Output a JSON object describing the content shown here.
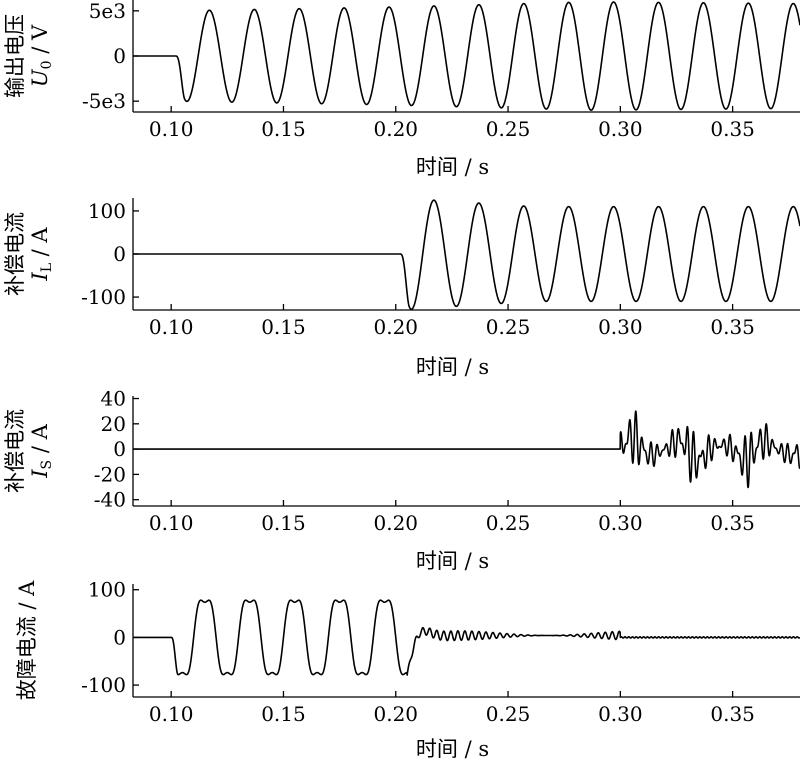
{
  "chart_data": [
    {
      "type": "line",
      "ylabel_cn": "输出电压",
      "ylabel_sym": "U",
      "ylabel_sub": "0",
      "ylabel_unit": " / V",
      "xlabel": "时间 / s",
      "xlim": [
        0.083,
        0.38
      ],
      "ylim": [
        -6200,
        6200
      ],
      "xticks": [
        0.1,
        0.15,
        0.2,
        0.25,
        0.3,
        0.35
      ],
      "xtick_labels": [
        "0.10",
        "0.15",
        "0.20",
        "0.25",
        "0.30",
        "0.35"
      ],
      "yticks": [
        5000,
        0,
        -5000
      ],
      "ytick_labels": [
        "5e3",
        "0",
        "-5e3"
      ],
      "series": [
        {
          "waveform": "sine",
          "start": 0.102,
          "frequency_hz": 50,
          "amplitude": [
            5000,
            5400,
            6000,
            5800
          ]
        }
      ]
    },
    {
      "type": "line",
      "ylabel_cn": "补偿电流",
      "ylabel_sym": "I",
      "ylabel_sub": "L",
      "ylabel_unit": " / A",
      "xlabel": "时间 / s",
      "xlim": [
        0.083,
        0.38
      ],
      "ylim": [
        -130,
        130
      ],
      "xticks": [
        0.1,
        0.15,
        0.2,
        0.25,
        0.3,
        0.35
      ],
      "xtick_labels": [
        "0.10",
        "0.15",
        "0.20",
        "0.25",
        "0.30",
        "0.35"
      ],
      "yticks": [
        100,
        0,
        -100
      ],
      "ytick_labels": [
        "100",
        "0",
        "-100"
      ],
      "series": [
        {
          "waveform": "sine",
          "start": 0.202,
          "frequency_hz": 50,
          "amplitude": [
            130,
            110,
            110,
            110
          ]
        }
      ]
    },
    {
      "type": "line",
      "ylabel_cn": "补偿电流",
      "ylabel_sym": "I",
      "ylabel_sub": "S",
      "ylabel_unit": " / A",
      "xlabel": "时间 / s",
      "xlim": [
        0.083,
        0.38
      ],
      "ylim": [
        -45,
        42
      ],
      "xticks": [
        0.1,
        0.15,
        0.2,
        0.25,
        0.3,
        0.35
      ],
      "xtick_labels": [
        "0.10",
        "0.15",
        "0.20",
        "0.25",
        "0.30",
        "0.35"
      ],
      "yticks": [
        40,
        20,
        0,
        -20,
        -40
      ],
      "ytick_labels": [
        "40",
        "20",
        "0",
        "-20",
        "-40"
      ],
      "series": [
        {
          "waveform": "oscillation",
          "start": 0.3,
          "amplitude_range": [
            -27,
            27
          ]
        }
      ]
    },
    {
      "type": "line",
      "ylabel_cn": "故障电流",
      "ylabel_sym": "",
      "ylabel_sub": "",
      "ylabel_unit": " / A",
      "xlabel": "时间 / s",
      "xlim": [
        0.083,
        0.38
      ],
      "ylim": [
        -125,
        112
      ],
      "xticks": [
        0.1,
        0.15,
        0.2,
        0.25,
        0.3,
        0.35
      ],
      "xtick_labels": [
        "0.10",
        "0.15",
        "0.20",
        "0.25",
        "0.30",
        "0.35"
      ],
      "yticks": [
        100,
        0,
        -100
      ],
      "ytick_labels": [
        "100",
        "0",
        "-100"
      ],
      "series": [
        {
          "waveform": "fault",
          "start": 0.1,
          "peak": 100,
          "decay_after": 0.205,
          "residual_amplitude": 10,
          "clear_at": 0.3
        }
      ]
    }
  ]
}
